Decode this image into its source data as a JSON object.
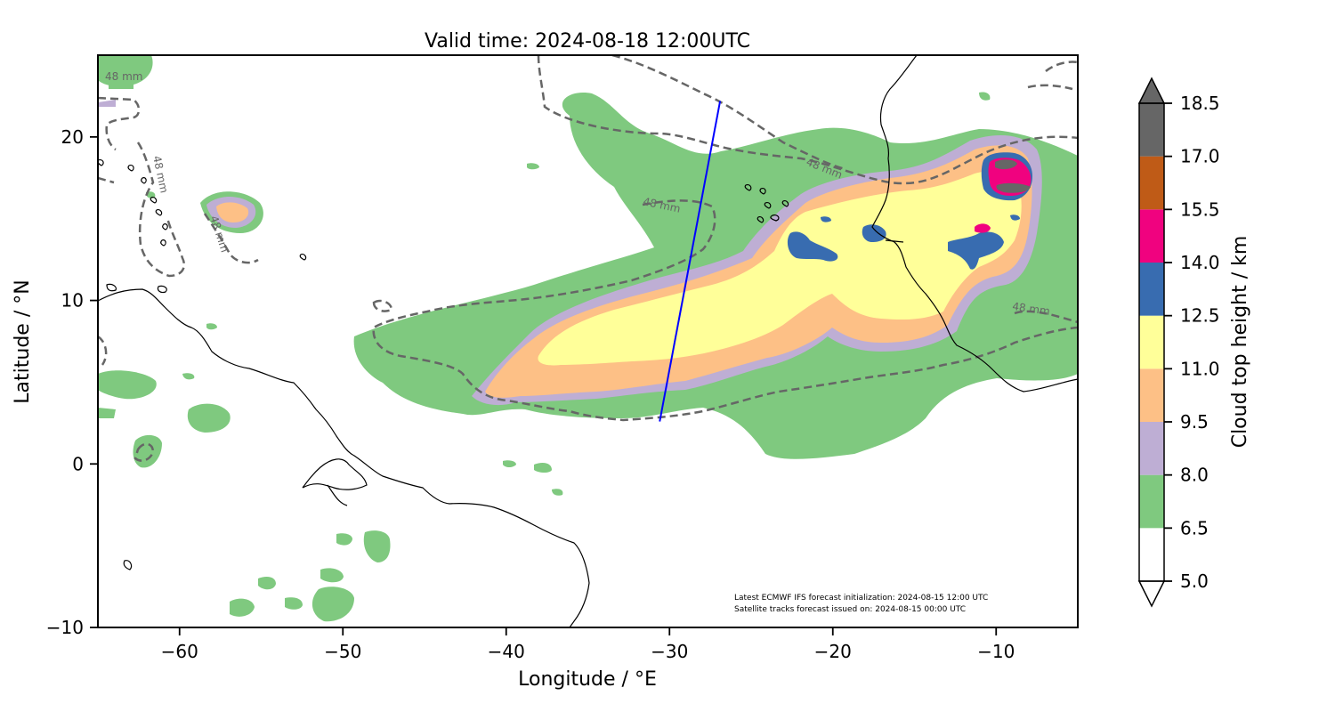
{
  "map": {
    "title": "Valid time: 2024-08-18 12:00UTC",
    "xlabel": "Longitude / °E",
    "ylabel": "Latitude / °N",
    "x_range": [
      -65,
      -5
    ],
    "y_range": [
      -10,
      25
    ],
    "x_ticks": [
      -60,
      -50,
      -40,
      -30,
      -20,
      -10
    ],
    "x_tick_labels": [
      "−60",
      "−50",
      "−40",
      "−30",
      "−20",
      "−10"
    ],
    "y_ticks": [
      -10,
      0,
      10,
      20
    ],
    "y_tick_labels": [
      "−10",
      "0",
      "10",
      "20"
    ],
    "footnote_1": "Latest ECMWF IFS forecast initialization: 2024-08-15 12:00 UTC",
    "footnote_2": "Satellite tracks forecast issued on: 2024-08-15 00:00 UTC",
    "contour_label": "48 mm",
    "contour_color": "#666666",
    "coastline_color": "#000000",
    "satellite_track_color": "#0000ff",
    "satellite_track": [
      [
        -30.6,
        2.6
      ],
      [
        -26.9,
        22.2
      ]
    ]
  },
  "colorbar": {
    "label": "Cloud top height / km",
    "levels": [
      "5.0",
      "6.5",
      "8.0",
      "9.5",
      "11.0",
      "12.5",
      "14.0",
      "15.5",
      "17.0",
      "18.5"
    ],
    "colors": [
      "#ffffff",
      "#7fc97f",
      "#beaed4",
      "#fdc086",
      "#ffff99",
      "#386cb0",
      "#f0027f",
      "#bf5b17",
      "#666666"
    ],
    "extend": "both"
  }
}
